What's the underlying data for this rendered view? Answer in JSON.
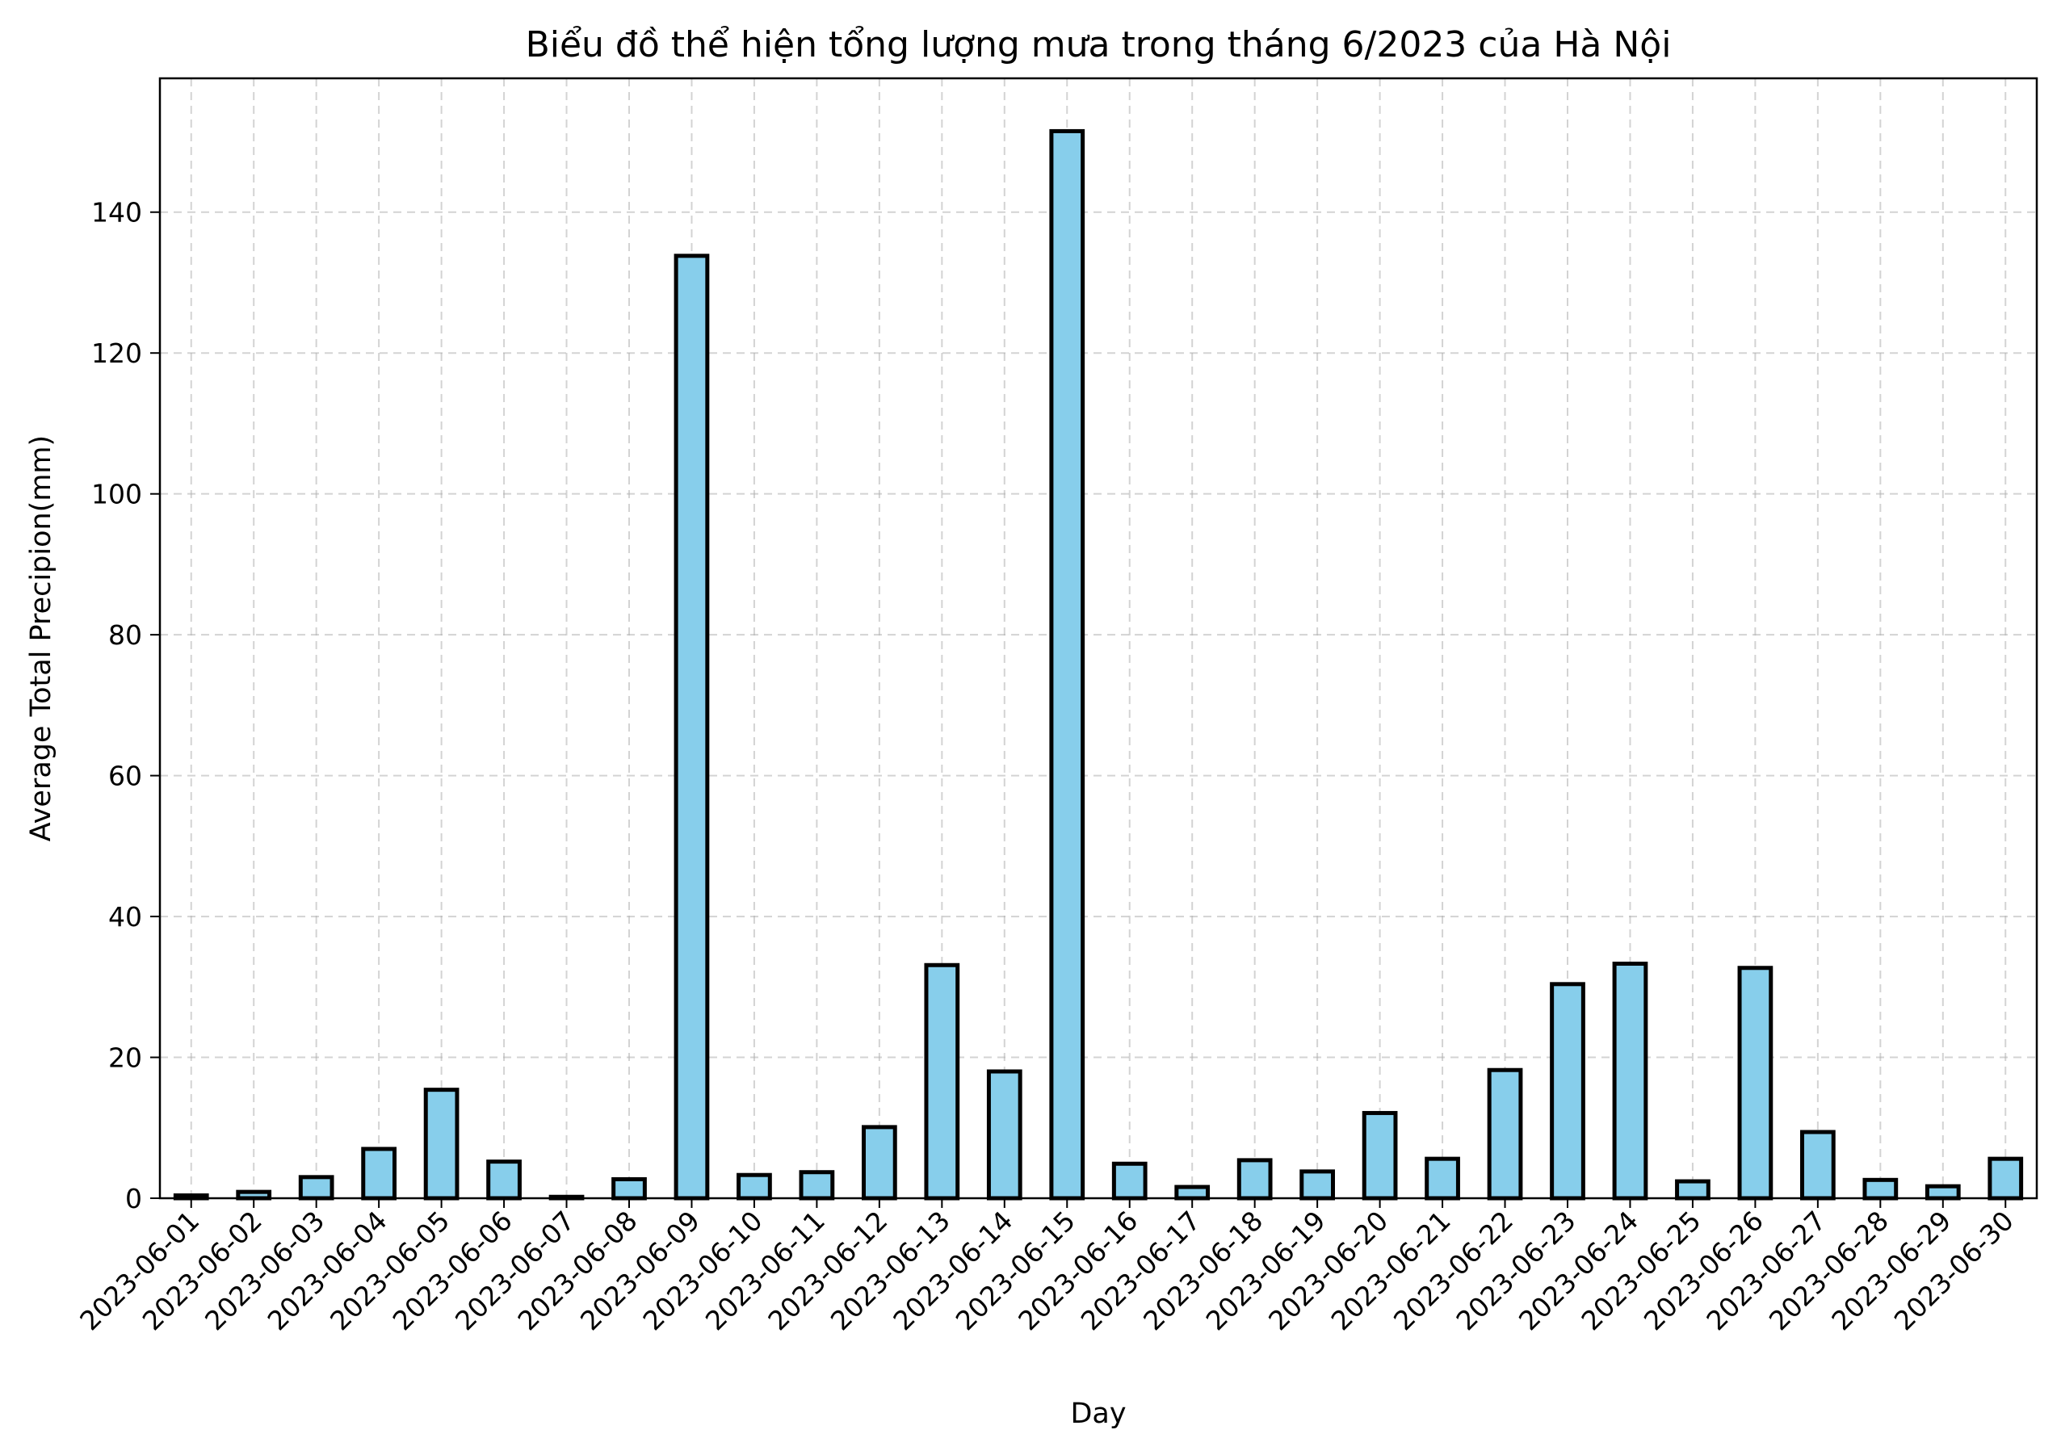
{
  "chart_data": {
    "type": "bar",
    "title": "Biểu đồ thể hiện tổng lượng mưa trong tháng 6/2023 của Hà Nội",
    "xlabel": "Day",
    "ylabel": "Average Total Precipion(mm)",
    "categories": [
      "2023-06-01",
      "2023-06-02",
      "2023-06-03",
      "2023-06-04",
      "2023-06-05",
      "2023-06-06",
      "2023-06-07",
      "2023-06-08",
      "2023-06-09",
      "2023-06-10",
      "2023-06-11",
      "2023-06-12",
      "2023-06-13",
      "2023-06-14",
      "2023-06-15",
      "2023-06-16",
      "2023-06-17",
      "2023-06-18",
      "2023-06-19",
      "2023-06-20",
      "2023-06-21",
      "2023-06-22",
      "2023-06-23",
      "2023-06-24",
      "2023-06-25",
      "2023-06-26",
      "2023-06-27",
      "2023-06-28",
      "2023-06-29",
      "2023-06-30"
    ],
    "values": [
      0.4,
      0.9,
      3.0,
      7.0,
      15.4,
      5.2,
      0.2,
      2.7,
      133.8,
      3.3,
      3.7,
      10.1,
      33.1,
      18.0,
      151.5,
      4.9,
      1.6,
      5.4,
      3.8,
      12.1,
      5.6,
      18.2,
      30.4,
      33.3,
      2.4,
      32.7,
      9.4,
      2.6,
      1.7,
      5.6
    ],
    "yticks": [
      0,
      20,
      40,
      60,
      80,
      100,
      120,
      140
    ],
    "ylim": [
      0,
      159
    ],
    "grid": true,
    "bar_color": "#87ceeb",
    "edge_color": "#000000"
  }
}
